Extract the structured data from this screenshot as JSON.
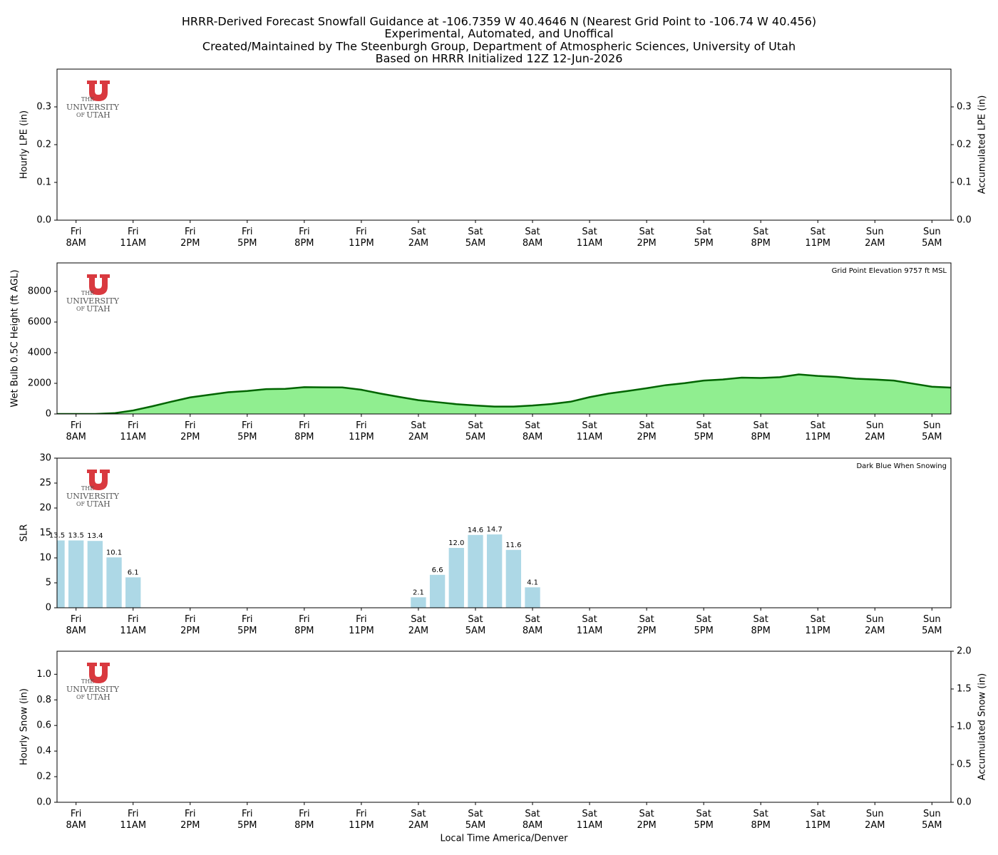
{
  "title": [
    "HRRR-Derived Forecast Snowfall Guidance at -106.7359 W 40.4646 N (Nearest Grid Point to -106.74 W 40.456)",
    "Experimental, Automated, and Unoffical",
    "Created/Maintained by The Steenburgh Group, Department of Atmospheric Sciences, University of Utah",
    "Based on HRRR Initialized 12Z 12-Jun-2026"
  ],
  "logo": [
    "THE",
    "UNIVERSITY",
    "OF",
    "UTAH"
  ],
  "chart_data": [
    {
      "type": "bar",
      "ylabel": "Hourly LPE (in)",
      "y2label": "Accumulated LPE (in)",
      "color": "#1f3f8f",
      "categories": [
        null,
        "Fri\n8AM",
        null,
        null,
        "Fri\n11AM",
        null,
        null,
        "Fri\n2PM",
        null,
        null,
        "Fri\n5PM",
        null,
        null,
        "Fri\n8PM",
        null,
        null,
        "Fri\n11PM",
        null,
        null,
        "Sat\n2AM",
        null,
        null,
        "Sat\n5AM",
        null,
        null,
        "Sat\n8AM",
        null,
        null,
        "Sat\n11AM",
        null,
        null,
        "Sat\n2PM",
        null,
        null,
        "Sat\n5PM",
        null,
        null,
        "Sat\n8PM",
        null,
        null,
        "Sat\n11PM",
        null,
        null,
        "Sun\n2AM",
        null,
        null,
        "Sun\n5AM",
        null
      ],
      "values": [
        0,
        0,
        0,
        0,
        0,
        0,
        0,
        0,
        0,
        0,
        0,
        0,
        0,
        0,
        0,
        0,
        0,
        0,
        0,
        0,
        0,
        0,
        0,
        0,
        0,
        0,
        0,
        0,
        0,
        0,
        0,
        0,
        0,
        0,
        0,
        0,
        0,
        0,
        0,
        0,
        0,
        0,
        0,
        0,
        0,
        0,
        0,
        0
      ],
      "ylim": [
        0,
        0.4
      ],
      "yticks": [
        {
          "value": 0,
          "label": "0.0"
        },
        0.1,
        0.2,
        0.3
      ],
      "y2lim": [
        0,
        0.4
      ],
      "y2ticks": [
        {
          "value": 0,
          "label": "0.0"
        },
        0.1,
        0.2,
        0.3
      ]
    },
    {
      "type": "area",
      "ylabel": "Wet Bulb 0.5C Height (ft AGL)",
      "annotation": "Grid Point Elevation 9757 ft MSL",
      "color": "#90ee90",
      "line_color": "#006400",
      "categories": [
        null,
        "Fri\n8AM",
        null,
        null,
        "Fri\n11AM",
        null,
        null,
        "Fri\n2PM",
        null,
        null,
        "Fri\n5PM",
        null,
        null,
        "Fri\n8PM",
        null,
        null,
        "Fri\n11PM",
        null,
        null,
        "Sat\n2AM",
        null,
        null,
        "Sat\n5AM",
        null,
        null,
        "Sat\n8AM",
        null,
        null,
        "Sat\n11AM",
        null,
        null,
        "Sat\n2PM",
        null,
        null,
        "Sat\n5PM",
        null,
        null,
        "Sat\n8PM",
        null,
        null,
        "Sat\n11PM",
        null,
        null,
        "Sun\n2AM",
        null,
        null,
        "Sun\n5AM",
        null
      ],
      "values": [
        0,
        0,
        0,
        50,
        230,
        500,
        800,
        1080,
        1250,
        1420,
        1500,
        1620,
        1640,
        1750,
        1740,
        1730,
        1580,
        1330,
        1110,
        900,
        770,
        640,
        550,
        480,
        480,
        550,
        650,
        800,
        1100,
        1330,
        1500,
        1680,
        1880,
        2010,
        2180,
        2250,
        2370,
        2350,
        2400,
        2580,
        2480,
        2420,
        2300,
        2250,
        2180,
        1980,
        1780,
        1720
      ],
      "ylim": [
        0,
        9860
      ],
      "yticks": [
        0,
        2000,
        4000,
        6000,
        8000
      ]
    },
    {
      "type": "bar",
      "ylabel": "SLR",
      "annotation": "Dark Blue When Snowing",
      "color": "#add8e6",
      "categories": [
        null,
        "Fri\n8AM",
        null,
        null,
        "Fri\n11AM",
        null,
        null,
        "Fri\n2PM",
        null,
        null,
        "Fri\n5PM",
        null,
        null,
        "Fri\n8PM",
        null,
        null,
        "Fri\n11PM",
        null,
        null,
        "Sat\n2AM",
        null,
        null,
        "Sat\n5AM",
        null,
        null,
        "Sat\n8AM",
        null,
        null,
        "Sat\n11AM",
        null,
        null,
        "Sat\n2PM",
        null,
        null,
        "Sat\n5PM",
        null,
        null,
        "Sat\n8PM",
        null,
        null,
        "Sat\n11PM",
        null,
        null,
        "Sun\n2AM",
        null,
        null,
        "Sun\n5AM",
        null
      ],
      "values": [
        13.5,
        13.5,
        13.4,
        10.1,
        6.1,
        0,
        0,
        0,
        0,
        0,
        0,
        0,
        0,
        0,
        0,
        0,
        0,
        0,
        0,
        2.1,
        6.6,
        12.0,
        14.6,
        14.7,
        11.6,
        4.1,
        0,
        0,
        0,
        0,
        0,
        0,
        0,
        0,
        0,
        0,
        0,
        0,
        0,
        0,
        0,
        0,
        0,
        0,
        0,
        0,
        0,
        0
      ],
      "value_labels": [
        "13.5",
        "13.5",
        "13.4",
        "10.1",
        "6.1",
        null,
        null,
        null,
        null,
        null,
        null,
        null,
        null,
        null,
        null,
        null,
        null,
        null,
        null,
        "2.1",
        "6.6",
        "12.0",
        "14.6",
        "14.7",
        "11.6",
        "4.1",
        null,
        null,
        null,
        null,
        null,
        null,
        null,
        null,
        null,
        null,
        null,
        null,
        null,
        null,
        null,
        null,
        null,
        null,
        null,
        null,
        null,
        null
      ],
      "ylim": [
        0,
        30
      ],
      "yticks": [
        0,
        5,
        10,
        15,
        20,
        25,
        30
      ]
    },
    {
      "type": "bar",
      "ylabel": "Hourly Snow (in)",
      "y2label": "Accumulated Snow (in)",
      "xlabel": "Local Time America/Denver",
      "color": "#1f3f8f",
      "categories": [
        null,
        "Fri\n8AM",
        null,
        null,
        "Fri\n11AM",
        null,
        null,
        "Fri\n2PM",
        null,
        null,
        "Fri\n5PM",
        null,
        null,
        "Fri\n8PM",
        null,
        null,
        "Fri\n11PM",
        null,
        null,
        "Sat\n2AM",
        null,
        null,
        "Sat\n5AM",
        null,
        null,
        "Sat\n8AM",
        null,
        null,
        "Sat\n11AM",
        null,
        null,
        "Sat\n2PM",
        null,
        null,
        "Sat\n5PM",
        null,
        null,
        "Sat\n8PM",
        null,
        null,
        "Sat\n11PM",
        null,
        null,
        "Sun\n2AM",
        null,
        null,
        "Sun\n5AM",
        null
      ],
      "values": [
        0,
        0,
        0,
        0,
        0,
        0,
        0,
        0,
        0,
        0,
        0,
        0,
        0,
        0,
        0,
        0,
        0,
        0,
        0,
        0,
        0,
        0,
        0,
        0,
        0,
        0,
        0,
        0,
        0,
        0,
        0,
        0,
        0,
        0,
        0,
        0,
        0,
        0,
        0,
        0,
        0,
        0,
        0,
        0,
        0,
        0,
        0,
        0
      ],
      "ylim": [
        0,
        1.18
      ],
      "yticks": [
        {
          "value": 0,
          "label": "0.0"
        },
        0.2,
        0.4,
        0.6,
        0.8,
        {
          "value": 1,
          "label": "1.0"
        }
      ],
      "y2lim": [
        0,
        2
      ],
      "y2ticks": [
        {
          "value": 0,
          "label": "0.0"
        },
        0.5,
        {
          "value": 1,
          "label": "1.0"
        },
        1.5,
        {
          "value": 2,
          "label": "2.0"
        }
      ]
    }
  ]
}
